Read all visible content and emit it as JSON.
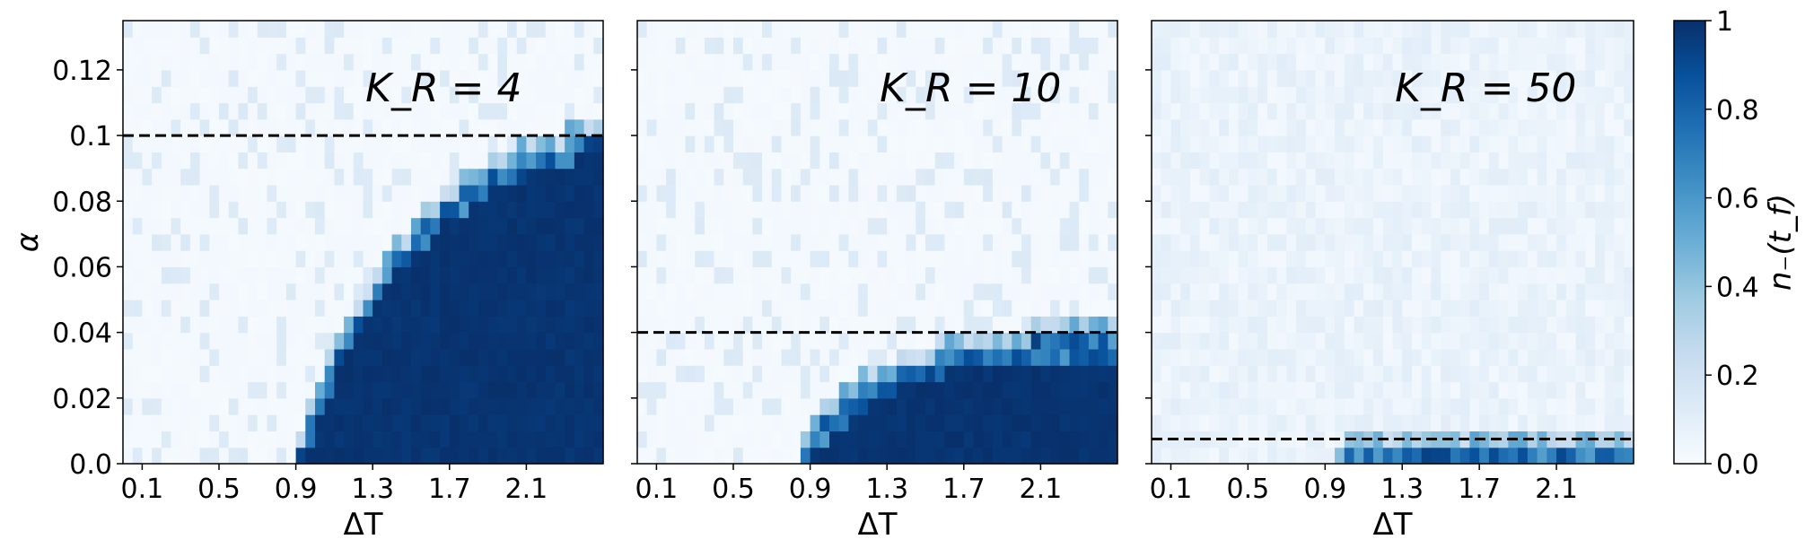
{
  "chart_data": {
    "type": "heatmap",
    "shared_y": true,
    "x_ticks": [
      "0.1",
      "0.5",
      "0.9",
      "1.3",
      "1.7",
      "2.1"
    ],
    "y_ticks": [
      "0.0",
      "0.02",
      "0.04",
      "0.06",
      "0.08",
      "0.1",
      "0.12"
    ],
    "y_tick_values": [
      0.0,
      0.02,
      0.04,
      0.06,
      0.08,
      0.1,
      0.12
    ],
    "xlabel": "ΔT",
    "ylabel": "α",
    "xlim": [
      0.0,
      2.5
    ],
    "ylim": [
      0.0,
      0.135
    ],
    "grid": false,
    "colormap": {
      "name": "Blues",
      "stops": [
        "#f7fbff",
        "#deebf7",
        "#c6dbef",
        "#9ecae1",
        "#6baed6",
        "#4292c6",
        "#2171b5",
        "#08519c",
        "#08306b"
      ]
    },
    "colorbar": {
      "label": "n₋(t_f)",
      "range": [
        0.0,
        1.0
      ],
      "ticks": [
        "0.0",
        "0.2",
        "0.4",
        "0.6",
        "0.8",
        "1"
      ]
    },
    "panels": [
      {
        "annotation": "K_R = 4",
        "threshold_alpha": 0.1,
        "y_axis_labels": true
      },
      {
        "annotation": "K_R = 10",
        "threshold_alpha": 0.04,
        "y_axis_labels": false
      },
      {
        "annotation": "K_R = 50",
        "threshold_alpha": 0.0075,
        "y_axis_labels": false
      }
    ]
  }
}
